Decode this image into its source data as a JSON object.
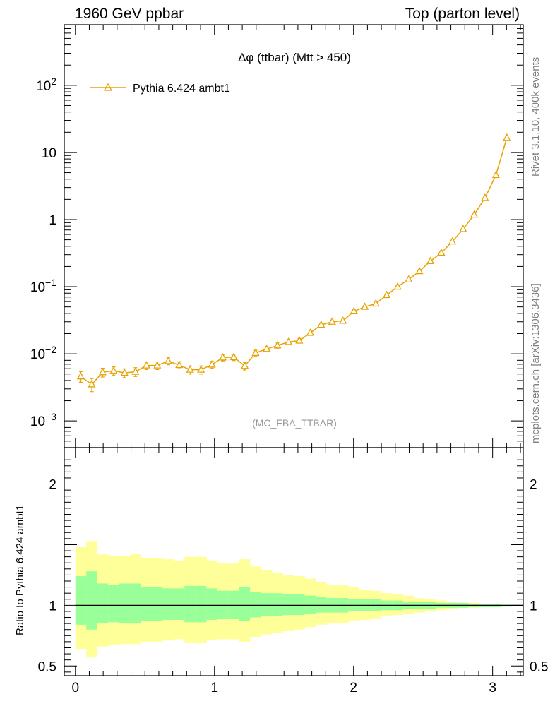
{
  "header": {
    "left_title": "1960 GeV ppbar",
    "right_title": "Top (parton level)"
  },
  "side_labels": {
    "rivet": "Rivet 3.1.10,  400k events",
    "mcplots": "mcplots.cern.ch [arXiv:1306.3436]"
  },
  "chart_data": [
    {
      "type": "line",
      "title": "Δφ (ttbar) (Mtt > 450)",
      "watermark": "(MC_FBA_TTBAR)",
      "y_scale": "log",
      "xlim": [
        -0.08,
        3.22
      ],
      "ylim": [
        0.0004,
        800
      ],
      "ytick_labels": [
        "10^-3",
        "10^-2",
        "10^-1",
        "1",
        "10",
        "10^2"
      ],
      "legend_placement": "top-left",
      "color": "#e8a200",
      "series": [
        {
          "name": "Pythia 6.424 ambt1",
          "marker": "open-triangle",
          "x": [
            0.039,
            0.118,
            0.196,
            0.275,
            0.353,
            0.432,
            0.511,
            0.589,
            0.668,
            0.746,
            0.825,
            0.903,
            0.982,
            1.06,
            1.139,
            1.218,
            1.296,
            1.375,
            1.453,
            1.532,
            1.61,
            1.689,
            1.767,
            1.846,
            1.924,
            2.003,
            2.081,
            2.16,
            2.238,
            2.317,
            2.396,
            2.474,
            2.553,
            2.631,
            2.71,
            2.788,
            2.867,
            2.945,
            3.024,
            3.102
          ],
          "y": [
            0.0046,
            0.0035,
            0.0053,
            0.0056,
            0.0052,
            0.0054,
            0.0067,
            0.0067,
            0.0078,
            0.0068,
            0.0058,
            0.0058,
            0.0069,
            0.0088,
            0.0089,
            0.0066,
            0.0103,
            0.0118,
            0.0133,
            0.015,
            0.0157,
            0.0205,
            0.027,
            0.03,
            0.031,
            0.043,
            0.05,
            0.056,
            0.075,
            0.1,
            0.128,
            0.17,
            0.24,
            0.32,
            0.47,
            0.72,
            1.18,
            2.1,
            4.6,
            16.5
          ],
          "err_frac": [
            0.18,
            0.22,
            0.15,
            0.14,
            0.15,
            0.15,
            0.13,
            0.13,
            0.12,
            0.12,
            0.14,
            0.14,
            0.12,
            0.11,
            0.11,
            0.13,
            0.1,
            0.09,
            0.09,
            0.08,
            0.08,
            0.07,
            0.06,
            0.06,
            0.06,
            0.05,
            0.05,
            0.05,
            0.04,
            0.04,
            0.03,
            0.03,
            0.03,
            0.02,
            0.02,
            0.02,
            0.01,
            0.01,
            0.01,
            0.01
          ]
        }
      ]
    },
    {
      "type": "area",
      "ylabel": "Ratio to Pythia 6.424 ambt1",
      "xlim": [
        -0.08,
        3.22
      ],
      "ylim": [
        0.42,
        2.3
      ],
      "xtick_labels": [
        "0",
        "1",
        "2",
        "3"
      ],
      "ytick_labels": [
        "0.5",
        "1",
        "2"
      ],
      "reference": 1,
      "colors": {
        "inner_band": "#99ff99",
        "outer_band": "#ffff99",
        "reference_line": "#000000"
      },
      "bins": {
        "edges": [
          0.0,
          0.0785,
          0.157,
          0.2355,
          0.314,
          0.3925,
          0.471,
          0.5495,
          0.628,
          0.7065,
          0.785,
          0.8635,
          0.942,
          1.0205,
          1.099,
          1.1775,
          1.256,
          1.3345,
          1.413,
          1.4915,
          1.57,
          1.6485,
          1.727,
          1.8055,
          1.884,
          1.9625,
          2.041,
          2.1195,
          2.198,
          2.2765,
          2.355,
          2.4335,
          2.512,
          2.5905,
          2.669,
          2.7475,
          2.826,
          2.9045,
          2.983,
          3.0615,
          3.14
        ],
        "inner_lo": [
          0.84,
          0.8,
          0.85,
          0.86,
          0.85,
          0.85,
          0.87,
          0.87,
          0.88,
          0.88,
          0.86,
          0.86,
          0.88,
          0.89,
          0.89,
          0.87,
          0.9,
          0.91,
          0.91,
          0.92,
          0.92,
          0.93,
          0.94,
          0.94,
          0.94,
          0.95,
          0.95,
          0.95,
          0.96,
          0.96,
          0.97,
          0.97,
          0.97,
          0.98,
          0.98,
          0.98,
          0.99,
          0.99,
          0.99,
          0.995
        ],
        "inner_hi": [
          1.24,
          1.28,
          1.18,
          1.17,
          1.18,
          1.18,
          1.15,
          1.15,
          1.14,
          1.14,
          1.16,
          1.16,
          1.14,
          1.12,
          1.12,
          1.15,
          1.11,
          1.1,
          1.1,
          1.09,
          1.09,
          1.08,
          1.07,
          1.06,
          1.06,
          1.05,
          1.05,
          1.05,
          1.04,
          1.04,
          1.03,
          1.03,
          1.03,
          1.02,
          1.02,
          1.02,
          1.01,
          1.01,
          1.01,
          1.005
        ],
        "outer_lo": [
          0.64,
          0.57,
          0.66,
          0.67,
          0.68,
          0.68,
          0.7,
          0.7,
          0.71,
          0.72,
          0.69,
          0.69,
          0.71,
          0.72,
          0.72,
          0.7,
          0.74,
          0.76,
          0.77,
          0.79,
          0.8,
          0.82,
          0.84,
          0.85,
          0.85,
          0.87,
          0.88,
          0.89,
          0.91,
          0.92,
          0.93,
          0.94,
          0.95,
          0.96,
          0.97,
          0.98,
          0.98,
          0.99,
          0.99,
          0.995
        ],
        "outer_hi": [
          1.48,
          1.53,
          1.42,
          1.41,
          1.41,
          1.42,
          1.39,
          1.39,
          1.38,
          1.37,
          1.4,
          1.4,
          1.37,
          1.35,
          1.35,
          1.38,
          1.32,
          1.29,
          1.27,
          1.25,
          1.24,
          1.22,
          1.19,
          1.17,
          1.17,
          1.15,
          1.13,
          1.12,
          1.1,
          1.09,
          1.08,
          1.06,
          1.05,
          1.04,
          1.03,
          1.02,
          1.02,
          1.01,
          1.01,
          1.005
        ]
      }
    }
  ]
}
